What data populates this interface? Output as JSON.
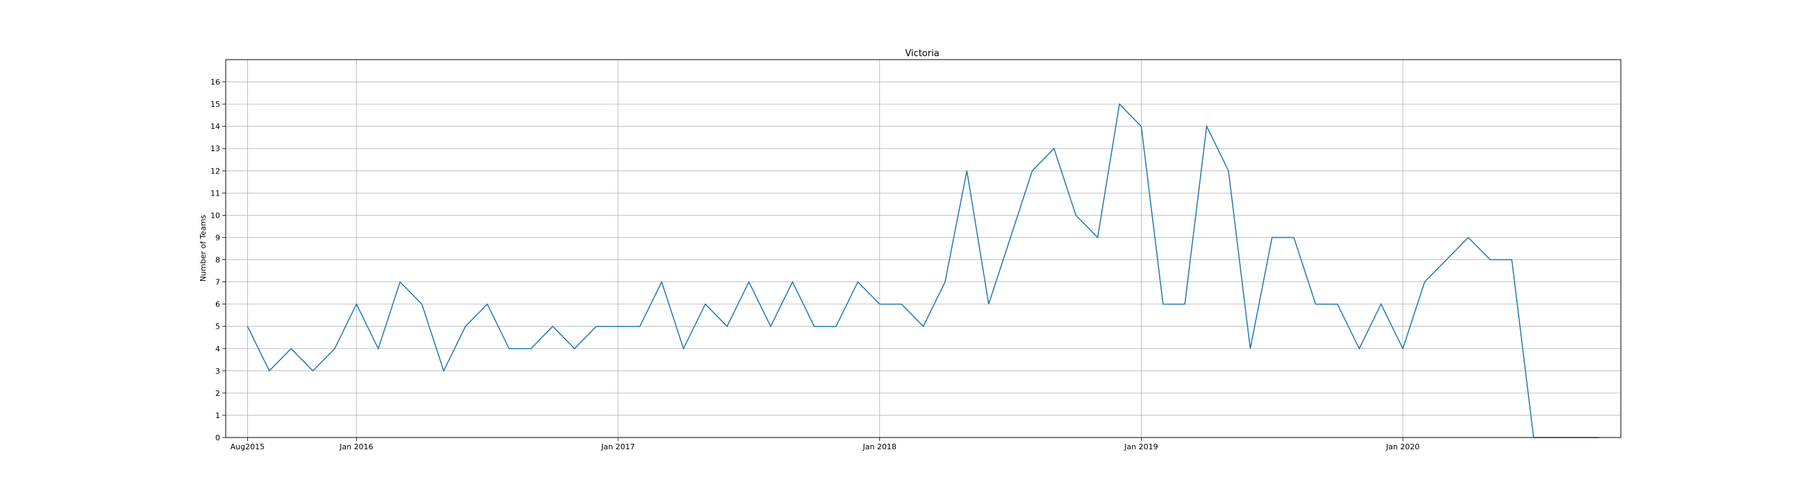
{
  "chart_data": {
    "type": "line",
    "title": "Victoria",
    "xlabel": "",
    "ylabel": "Number of Teams",
    "x_axis": {
      "min": "2015-08",
      "max": "2020-10",
      "ticks": [
        "2015-08",
        "2016-01",
        "2017-01",
        "2018-01",
        "2019-01",
        "2020-01"
      ],
      "tick_labels": [
        "Aug2015",
        "Jan 2016",
        "Jan 2017",
        "Jan 2018",
        "Jan 2019",
        "Jan 2020"
      ]
    },
    "ylim": [
      0,
      17
    ],
    "y_ticks": [
      0,
      1,
      2,
      3,
      4,
      5,
      6,
      7,
      8,
      9,
      10,
      11,
      12,
      13,
      14,
      15,
      16
    ],
    "grid": true,
    "line_color": "#1f77b4",
    "series": [
      {
        "x": [
          "2015-08",
          "2015-09",
          "2015-10",
          "2015-11",
          "2015-12",
          "2016-01",
          "2016-02",
          "2016-03",
          "2016-04",
          "2016-05",
          "2016-06",
          "2016-07",
          "2016-08",
          "2016-09",
          "2016-10",
          "2016-11",
          "2016-12",
          "2017-01",
          "2017-02",
          "2017-03",
          "2017-04",
          "2017-05",
          "2017-06",
          "2017-07",
          "2017-08",
          "2017-09",
          "2017-10",
          "2017-11",
          "2017-12",
          "2018-01",
          "2018-02",
          "2018-03",
          "2018-04",
          "2018-05",
          "2018-06",
          "2018-07",
          "2018-08",
          "2018-09",
          "2018-10",
          "2018-11",
          "2018-12",
          "2019-01",
          "2019-02",
          "2019-03",
          "2019-04",
          "2019-05",
          "2019-06",
          "2019-07",
          "2019-08",
          "2019-09",
          "2019-10",
          "2019-11",
          "2019-12",
          "2020-01",
          "2020-02",
          "2020-03",
          "2020-04",
          "2020-05",
          "2020-06",
          "2020-07",
          "2020-08",
          "2020-09",
          "2020-10"
        ],
        "values": [
          5,
          3,
          4,
          3,
          4,
          6,
          4,
          7,
          6,
          3,
          5,
          6,
          4,
          4,
          5,
          4,
          5,
          5,
          5,
          7,
          4,
          6,
          5,
          7,
          5,
          7,
          5,
          5,
          7,
          6,
          6,
          5,
          7,
          12,
          6,
          9,
          12,
          13,
          10,
          9,
          15,
          14,
          6,
          6,
          14,
          12,
          4,
          9,
          9,
          6,
          6,
          4,
          6,
          4,
          7,
          8,
          9,
          8,
          8,
          0,
          0,
          0,
          0
        ]
      }
    ]
  }
}
